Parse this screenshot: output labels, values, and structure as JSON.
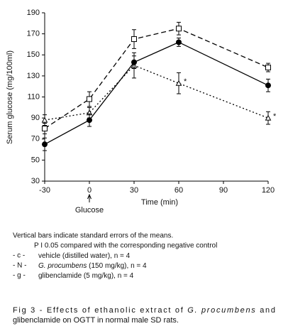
{
  "chart_data": {
    "type": "line",
    "xlabel": "Time (min)",
    "ylabel": "Serum glucose (mg/100ml)",
    "x": [
      -30,
      0,
      30,
      60,
      120
    ],
    "xlim": [
      -30,
      120
    ],
    "xticks": [
      -30,
      0,
      30,
      60,
      90,
      120
    ],
    "ylim": [
      30,
      190
    ],
    "yticks": [
      30,
      50,
      70,
      90,
      110,
      130,
      150,
      170,
      190
    ],
    "series": [
      {
        "key": "- c -",
        "label": [
          {
            "text": "vehicle (distilled water), n = 4",
            "italic": false
          }
        ],
        "marker": "square",
        "dash": "7,4",
        "color": "#000000",
        "values": [
          80,
          108,
          165,
          175,
          138
        ],
        "errors": [
          5,
          7,
          9,
          6,
          4
        ]
      },
      {
        "key": "- N -",
        "label": [
          {
            "text": "G. procumbens",
            "italic": true
          },
          {
            "text": " (150 mg/kg), n = 4",
            "italic": false
          }
        ],
        "marker": "triangle",
        "dash": "2,3",
        "color": "#000000",
        "values": [
          88,
          95,
          140,
          123,
          90
        ],
        "errors": [
          5,
          5,
          12,
          10,
          6
        ]
      },
      {
        "key": "- g -",
        "label": [
          {
            "text": "glibenclamide (5 mg/kg), n = 4",
            "italic": false
          }
        ],
        "marker": "circle",
        "dash": "",
        "color": "#000000",
        "values": [
          65,
          88,
          143,
          162,
          121
        ],
        "errors": [
          6,
          6,
          6,
          4,
          6
        ]
      }
    ],
    "annotations": [
      {
        "text": "Glucose",
        "x": 0
      }
    ],
    "significance": [
      {
        "text": "*",
        "series": 1,
        "index": 3
      },
      {
        "text": "*",
        "series": 1,
        "index": 4
      }
    ]
  },
  "notes": [
    "Vertical bars indicate standard errors of the means.",
    "P I 0.05 compared with the corresponding negative control"
  ],
  "caption": [
    [
      {
        "text": "Fig 3 - Effects of ethanolic extract of ",
        "italic": false
      },
      {
        "text": "G. procumbens",
        "italic": true
      },
      {
        "text": " and",
        "italic": false
      }
    ],
    [
      {
        "text": "glibenclamide on OGTT in normal male SD rats.",
        "italic": false
      }
    ]
  ]
}
